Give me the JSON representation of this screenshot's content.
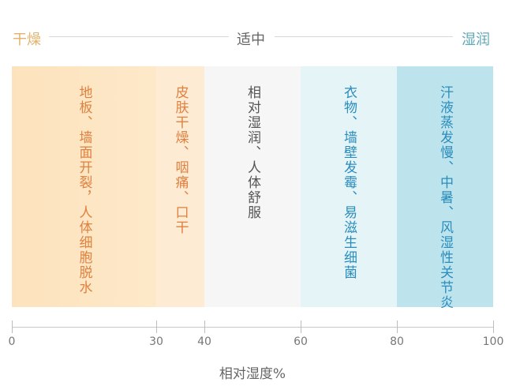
{
  "header": {
    "left": "干燥",
    "center": "适中",
    "right": "湿润"
  },
  "zones": [
    {
      "from": 0,
      "to": 30,
      "text": "地板、墙面开裂，人体细胞脱水",
      "color": "#fde3bd",
      "text_color": "#e0813f"
    },
    {
      "from": 30,
      "to": 40,
      "text": "皮肤干燥、咽痛、口干",
      "color": "#fdebd3",
      "text_color": "#e0813f"
    },
    {
      "from": 40,
      "to": 60,
      "text": "相对湿润、人体舒服",
      "color": "#f6f6f6",
      "text_color": "#555555"
    },
    {
      "from": 60,
      "to": 80,
      "text": "衣物、墙壁发霉、易滋生细菌",
      "color": "#e4f4f7",
      "text_color": "#2b8dbd"
    },
    {
      "from": 80,
      "to": 100,
      "text": "汗液蒸发慢、中暑、风湿性关节炎",
      "color": "#bde3ec",
      "text_color": "#2b8dbd"
    }
  ],
  "axis": {
    "ticks": [
      "0",
      "30",
      "40",
      "60",
      "80",
      "100"
    ],
    "label": "相对湿度%"
  },
  "colors": {
    "dry": "#e8b66e",
    "mid": "#666666",
    "wet": "#5fa9b5"
  }
}
